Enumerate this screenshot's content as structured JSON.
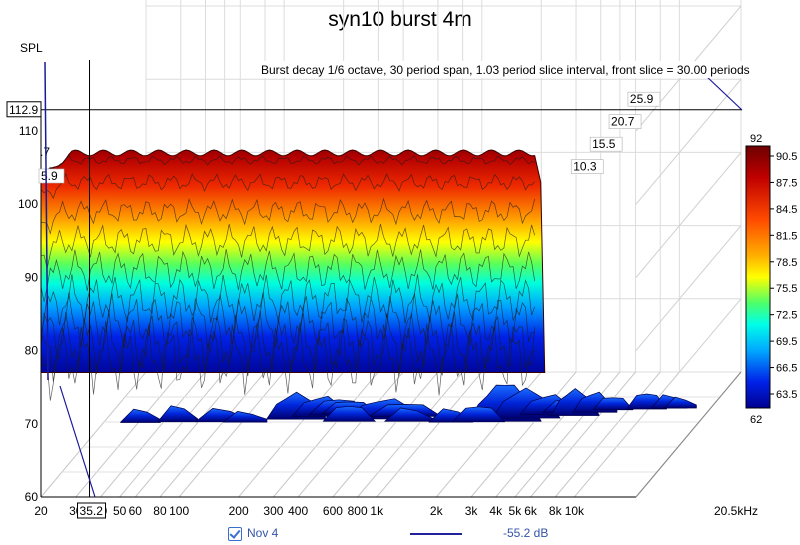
{
  "chart_data": {
    "type": "waterfall",
    "title": "syn10 burst 4m",
    "ylabel": "SPL",
    "annotation": "Burst decay 1/6 octave, 30 period span, 1.03 period slice interval,  front slice = 30.00 periods",
    "x_scale": "log",
    "x_ticks": [
      {
        "v": 20,
        "label": "20"
      },
      {
        "v": 30,
        "label": "30"
      },
      {
        "v": 40,
        "label": "40"
      },
      {
        "v": 50,
        "label": "50"
      },
      {
        "v": 60,
        "label": "60"
      },
      {
        "v": 80,
        "label": "80"
      },
      {
        "v": 100,
        "label": "100"
      },
      {
        "v": 200,
        "label": "200"
      },
      {
        "v": 300,
        "label": "300"
      },
      {
        "v": 400,
        "label": "400"
      },
      {
        "v": 600,
        "label": "600"
      },
      {
        "v": 800,
        "label": "800"
      },
      {
        "v": 1000,
        "label": "1k"
      },
      {
        "v": 2000,
        "label": "2k"
      },
      {
        "v": 3000,
        "label": "3k"
      },
      {
        "v": 4000,
        "label": "4k"
      },
      {
        "v": 5000,
        "label": "5k"
      },
      {
        "v": 6000,
        "label": "6k"
      },
      {
        "v": 8000,
        "label": "8k"
      },
      {
        "v": 10000,
        "label": "10k"
      },
      {
        "v": 20500,
        "label": "20.5kHz"
      }
    ],
    "xlim": [
      20,
      20500
    ],
    "ylim": [
      60,
      113
    ],
    "y_ticks": [
      60,
      70,
      80,
      90,
      100,
      110
    ],
    "cursor": {
      "x": 35.2,
      "x_label": "35.2",
      "y": 112.9,
      "y_label": "112.9"
    },
    "time_axis_labels": [
      "5.9",
      "10.3",
      "15.5",
      "20.7",
      "25.9"
    ],
    "time_axis_cut_label": ".7",
    "colorbar": {
      "min_label": "62",
      "max_label": "92",
      "ticks": [
        "90.5",
        "87.5",
        "84.5",
        "81.5",
        "78.5",
        "75.5",
        "72.5",
        "69.5",
        "66.5",
        "63.5"
      ]
    },
    "front_slice_level": 107,
    "floor_level": 77,
    "grid": true
  },
  "legend": {
    "label": "Nov 4",
    "value": "-55.2 dB",
    "line_color": "#22229a"
  }
}
